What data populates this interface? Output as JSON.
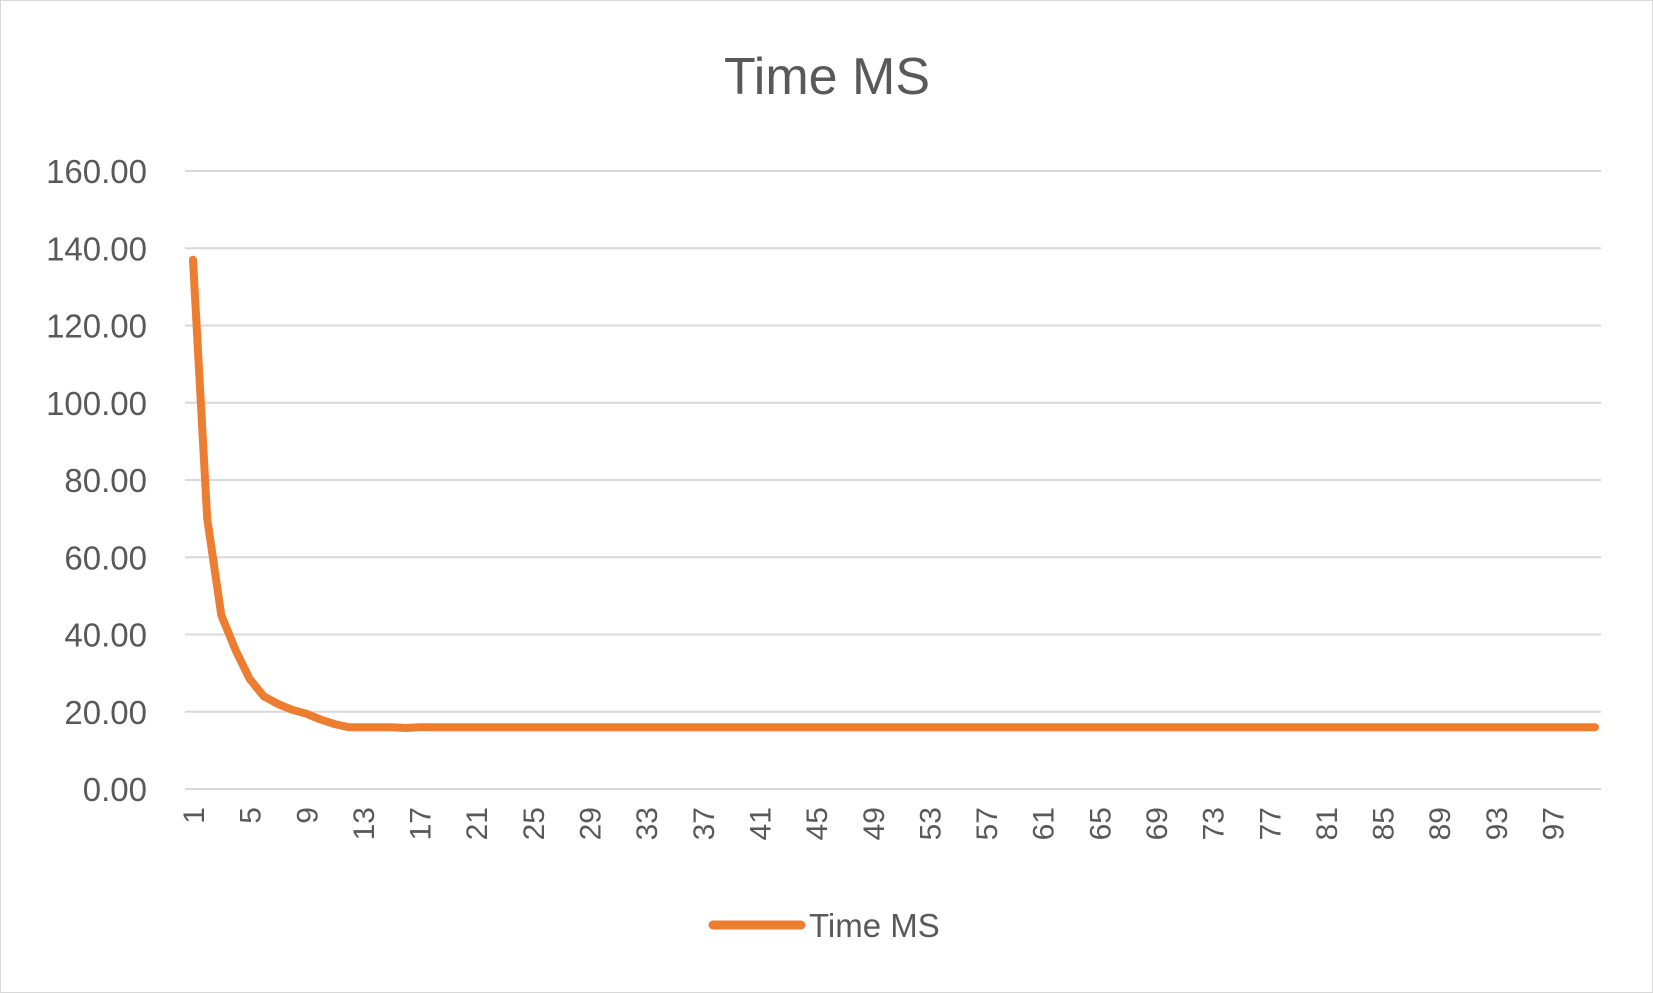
{
  "chart_data": {
    "type": "line",
    "title": "Time MS",
    "xlabel": "",
    "ylabel": "",
    "ylim": [
      0,
      160
    ],
    "yticks": [
      "0.00",
      "20.00",
      "40.00",
      "60.00",
      "80.00",
      "100.00",
      "120.00",
      "140.00",
      "160.00"
    ],
    "xtick_labels": [
      "1",
      "5",
      "9",
      "13",
      "17",
      "21",
      "25",
      "29",
      "33",
      "37",
      "41",
      "45",
      "49",
      "53",
      "57",
      "61",
      "65",
      "69",
      "73",
      "77",
      "81",
      "85",
      "89",
      "93",
      "97"
    ],
    "x_range": [
      1,
      100
    ],
    "grid": true,
    "legend_position": "bottom",
    "series": [
      {
        "name": "Time MS",
        "color": "#ed7d31",
        "x": [
          1,
          2,
          3,
          4,
          5,
          6,
          7,
          8,
          9,
          10,
          11,
          12,
          13,
          14,
          15,
          16,
          17,
          18,
          19,
          20,
          21,
          22,
          23,
          24,
          25,
          26,
          27,
          28,
          29,
          30,
          31,
          32,
          33,
          34,
          35,
          36,
          37,
          38,
          39,
          40,
          41,
          42,
          43,
          44,
          45,
          46,
          47,
          48,
          49,
          50,
          51,
          52,
          53,
          54,
          55,
          56,
          57,
          58,
          59,
          60,
          61,
          62,
          63,
          64,
          65,
          66,
          67,
          68,
          69,
          70,
          71,
          72,
          73,
          74,
          75,
          76,
          77,
          78,
          79,
          80,
          81,
          82,
          83,
          84,
          85,
          86,
          87,
          88,
          89,
          90,
          91,
          92,
          93,
          94,
          95,
          96,
          97,
          98,
          99,
          100
        ],
        "values": [
          137,
          70,
          45,
          36,
          28.5,
          24,
          22,
          20.5,
          19.5,
          18,
          16.8,
          16,
          16,
          16,
          16,
          15.8,
          16,
          16,
          16,
          16,
          16,
          16,
          16,
          16,
          16,
          16,
          16,
          16,
          16,
          16,
          16,
          16,
          16,
          16,
          16,
          16,
          16,
          16,
          16,
          16,
          16,
          16,
          16,
          16,
          16,
          16,
          16,
          16,
          16,
          16,
          16,
          16,
          16,
          16,
          16,
          16,
          16,
          16,
          16,
          16,
          16,
          16,
          16,
          16,
          16,
          16,
          16,
          16,
          16,
          16,
          16,
          16,
          16,
          16,
          16,
          16,
          16,
          16,
          16,
          16,
          16,
          16,
          16,
          16,
          16,
          16,
          16,
          16,
          16,
          16,
          16,
          16,
          16,
          16,
          16,
          16,
          16,
          16,
          16,
          16
        ]
      }
    ]
  }
}
